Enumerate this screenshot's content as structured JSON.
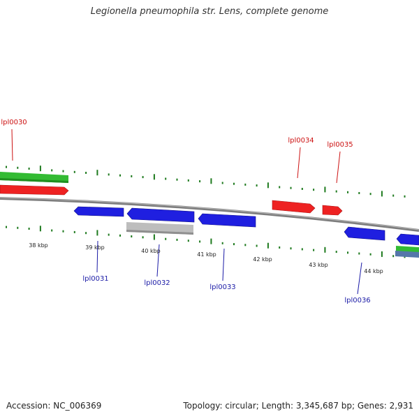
{
  "title": "Legionella pneumophila str. Lens, complete genome",
  "accession_text": "Accession: NC_006369",
  "topology_text": "Topology: circular; Length: 3,345,687 bp; Genes: 2,931",
  "colors": {
    "forward": "#ee2222",
    "reverse": "#1f1fe0",
    "label_forward": "#cc1111",
    "label_reverse": "#1a1aa6",
    "ticks": "#1e7a1e",
    "backbone": "#808080",
    "green_feature": "#33bb33",
    "grey_feature": "#bdbdbd"
  },
  "ticks": [
    {
      "label": "38 kbp"
    },
    {
      "label": "39 kbp"
    },
    {
      "label": "40 kbp"
    },
    {
      "label": "41 kbp"
    },
    {
      "label": "42 kbp"
    },
    {
      "label": "43 kbp"
    },
    {
      "label": "44 kbp"
    }
  ],
  "genes": [
    {
      "id": "lpl0030",
      "strand": "+"
    },
    {
      "id": "lpl0031",
      "strand": "-"
    },
    {
      "id": "lpl0032",
      "strand": "-"
    },
    {
      "id": "lpl0033",
      "strand": "-"
    },
    {
      "id": "lpl0034",
      "strand": "+"
    },
    {
      "id": "lpl0035",
      "strand": "+"
    },
    {
      "id": "lpl0036",
      "strand": "-"
    }
  ]
}
